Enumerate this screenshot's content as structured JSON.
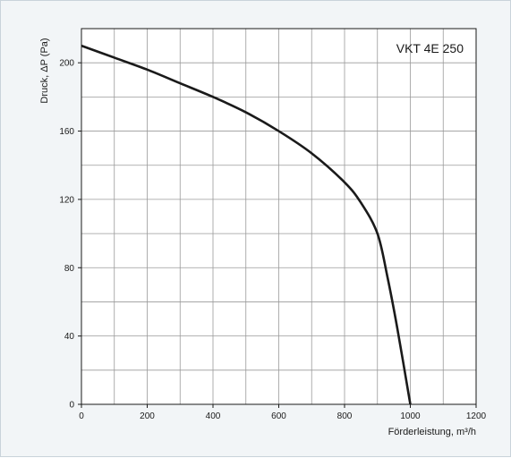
{
  "chart_data": {
    "type": "line",
    "title": "",
    "model_label": "VKT 4E 250",
    "xlabel": "Förderleistung, m³/h",
    "ylabel": "Druck, ΔP (Pa)",
    "xlim": [
      0,
      1200
    ],
    "ylim": [
      0,
      220
    ],
    "x_ticks": [
      0,
      200,
      400,
      600,
      800,
      1000,
      1200
    ],
    "y_ticks": [
      0,
      40,
      80,
      120,
      160,
      200
    ],
    "x_tick_labels": [
      "0",
      "200",
      "400",
      "600",
      "800",
      "1000",
      "1200"
    ],
    "y_tick_labels": [
      "0",
      "40",
      "80",
      "120",
      "160",
      "200"
    ],
    "x_grid_step": 100,
    "y_grid_step": 20,
    "grid": true,
    "series": [
      {
        "x": [
          0,
          100,
          200,
          300,
          400,
          500,
          600,
          700,
          800,
          850,
          900,
          930,
          960,
          1000
        ],
        "y": [
          210,
          203,
          196,
          188,
          180,
          171,
          160,
          147,
          130,
          118,
          100,
          75,
          45,
          0
        ]
      }
    ],
    "line_color": "#1a1a1a",
    "background_color": "#f2f5f7",
    "plot_background_color": "#ffffff",
    "grid_color": "#9a9a9a"
  }
}
